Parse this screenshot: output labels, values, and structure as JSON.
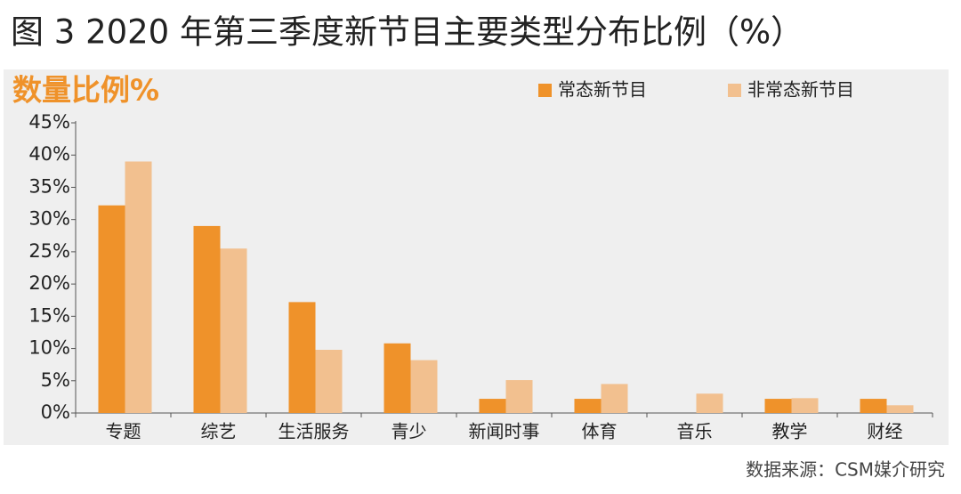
{
  "chart_data": {
    "type": "bar",
    "title": "图 3  2020 年第三季度新节目主要类型分布比例（%）",
    "y_label": "数量比例%",
    "source": "数据来源：CSM媒介研究",
    "categories": [
      "专题",
      "综艺",
      "生活服务",
      "青少",
      "新闻时事",
      "体育",
      "音乐",
      "教学",
      "财经"
    ],
    "series": [
      {
        "name": "常态新节目",
        "color": "#ef922a",
        "values": [
          32.2,
          29.0,
          17.2,
          10.8,
          2.2,
          2.2,
          0,
          2.2,
          2.2
        ]
      },
      {
        "name": "非常态新节目",
        "color": "#f2c08f",
        "values": [
          39.0,
          25.5,
          9.8,
          8.2,
          5.1,
          4.5,
          3.0,
          2.3,
          1.2
        ]
      }
    ],
    "ylim": [
      0,
      45
    ],
    "yticks": [
      {
        "value": 0,
        "label": "0%"
      },
      {
        "value": 5,
        "label": "5%"
      },
      {
        "value": 10,
        "label": "10%"
      },
      {
        "value": 15,
        "label": "15%"
      },
      {
        "value": 20,
        "label": "20%"
      },
      {
        "value": 25,
        "label": "25%"
      },
      {
        "value": 30,
        "label": "30%"
      },
      {
        "value": 35,
        "label": "35%"
      },
      {
        "value": 40,
        "label": "40%"
      },
      {
        "value": 45,
        "label": "45%"
      }
    ],
    "legend": "top-right"
  }
}
